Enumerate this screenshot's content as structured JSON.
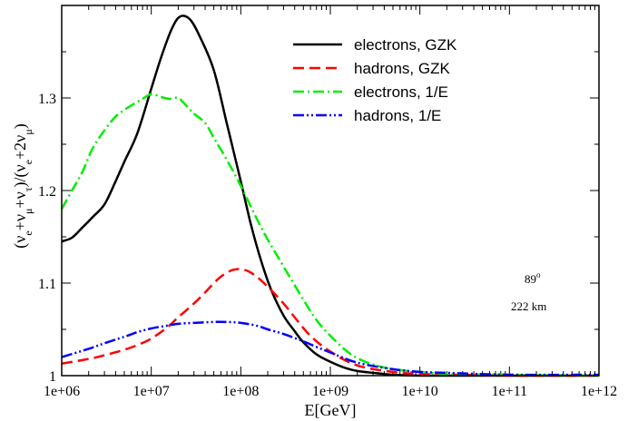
{
  "chart_data": {
    "type": "line",
    "xscale": "log",
    "xlim": [
      1000000,
      1000000000000
    ],
    "ylim": [
      1.0,
      1.4
    ],
    "xlabel": "E[GeV]",
    "ylabel_parts": {
      "a": "(ν",
      "a_sub": "e",
      "b": "+ν",
      "b_sub": "μ",
      "c": "+ν",
      "c_sub": "τ",
      "d": ")/(ν",
      "d_sub": "e",
      "e": "+2ν",
      "e_sub": "μ",
      "f": ")"
    },
    "x_ticks": [
      {
        "value": 1000000,
        "label": "1e+06"
      },
      {
        "value": 10000000,
        "label": "1e+07"
      },
      {
        "value": 100000000,
        "label": "1e+08"
      },
      {
        "value": 1000000000,
        "label": "1e+09"
      },
      {
        "value": 10000000000,
        "label": "1e+10"
      },
      {
        "value": 100000000000,
        "label": "1e+11"
      },
      {
        "value": 1000000000000,
        "label": "1e+12"
      }
    ],
    "y_ticks": [
      {
        "value": 1.0,
        "label": "1"
      },
      {
        "value": 1.1,
        "label": "1.1"
      },
      {
        "value": 1.2,
        "label": "1.2"
      },
      {
        "value": 1.3,
        "label": "1.3"
      }
    ],
    "annotations": {
      "angle": "89",
      "angle_sup": "o",
      "distance": "222 km"
    },
    "legend_position": "top-right",
    "series": [
      {
        "name": "electrons, GZK",
        "color": "#000000",
        "dash": "solid",
        "x": [
          1000000.0,
          1300000.0,
          1700000.0,
          2200000.0,
          3000000.0,
          4000000.0,
          5000000.0,
          7000000.0,
          10000000.0,
          13000000.0,
          17000000.0,
          21000000.0,
          27000000.0,
          35000000.0,
          50000000.0,
          70000000.0,
          100000000.0,
          130000000.0,
          170000000.0,
          220000000.0,
          300000000.0,
          400000000.0,
          500000000.0,
          700000000.0,
          1000000000.0,
          1500000000.0,
          2000000000.0,
          3000000000.0,
          5000000000.0,
          10000000000.0,
          100000000000.0,
          1000000000000.0
        ],
        "y": [
          1.145,
          1.149,
          1.16,
          1.171,
          1.185,
          1.21,
          1.231,
          1.262,
          1.31,
          1.345,
          1.375,
          1.388,
          1.385,
          1.366,
          1.33,
          1.272,
          1.21,
          1.163,
          1.123,
          1.092,
          1.065,
          1.048,
          1.036,
          1.023,
          1.015,
          1.008,
          1.005,
          1.003,
          1.001,
          1.0,
          1.0,
          1.0
        ]
      },
      {
        "name": "hadrons, GZK",
        "color": "#ff0000",
        "dash": "12,6",
        "x": [
          1000000.0,
          2000000.0,
          3000000.0,
          5000000.0,
          7000000.0,
          10000000.0,
          15000000.0,
          20000000.0,
          30000000.0,
          40000000.0,
          50000000.0,
          60000000.0,
          70000000.0,
          80000000.0,
          90000000.0,
          100000000.0,
          120000000.0,
          150000000.0,
          200000000.0,
          300000000.0,
          400000000.0,
          600000000.0,
          1000000000.0,
          2000000000.0,
          5000000000.0,
          10000000000.0,
          100000000000.0,
          1000000000000.0
        ],
        "y": [
          1.013,
          1.018,
          1.022,
          1.028,
          1.033,
          1.04,
          1.052,
          1.063,
          1.078,
          1.09,
          1.1,
          1.107,
          1.111,
          1.114,
          1.115,
          1.115,
          1.113,
          1.107,
          1.096,
          1.078,
          1.063,
          1.043,
          1.026,
          1.011,
          1.004,
          1.002,
          1.0,
          1.0
        ]
      },
      {
        "name": "electrons, 1/E",
        "color": "#00ee00",
        "dash": "12,4,2,4",
        "x": [
          1000000.0,
          1300000.0,
          1700000.0,
          2200000.0,
          3000000.0,
          4000000.0,
          5000000.0,
          6000000.0,
          8000000.0,
          10000000.0,
          13000000.0,
          16000000.0,
          20000000.0,
          25000000.0,
          30000000.0,
          40000000.0,
          50000000.0,
          70000000.0,
          100000000.0,
          150000000.0,
          200000000.0,
          300000000.0,
          500000000.0,
          700000000.0,
          1000000000.0,
          1500000000.0,
          2000000000.0,
          3000000000.0,
          5000000000.0,
          10000000000.0,
          20000000000.0,
          100000000000.0,
          1000000000000.0
        ],
        "y": [
          1.18,
          1.2,
          1.22,
          1.245,
          1.265,
          1.28,
          1.287,
          1.292,
          1.299,
          1.304,
          1.301,
          1.299,
          1.3,
          1.291,
          1.283,
          1.273,
          1.257,
          1.233,
          1.205,
          1.17,
          1.147,
          1.118,
          1.082,
          1.06,
          1.043,
          1.027,
          1.019,
          1.012,
          1.007,
          1.004,
          1.002,
          1.001,
          1.0
        ]
      },
      {
        "name": "hadrons, 1/E",
        "color": "#0000ff",
        "dash": "12,3,2,3,2,3",
        "x": [
          1000000.0,
          2000000.0,
          3000000.0,
          5000000.0,
          7000000.0,
          10000000.0,
          15000000.0,
          20000000.0,
          30000000.0,
          50000000.0,
          70000000.0,
          100000000.0,
          150000000.0,
          200000000.0,
          300000000.0,
          500000000.0,
          700000000.0,
          1000000000.0,
          2000000000.0,
          5000000000.0,
          10000000000.0,
          20000000000.0,
          100000000000.0,
          1000000000000.0
        ],
        "y": [
          1.02,
          1.029,
          1.035,
          1.042,
          1.047,
          1.051,
          1.054,
          1.056,
          1.057,
          1.058,
          1.058,
          1.057,
          1.054,
          1.05,
          1.045,
          1.037,
          1.031,
          1.025,
          1.014,
          1.007,
          1.004,
          1.003,
          1.001,
          1.001
        ]
      }
    ]
  }
}
